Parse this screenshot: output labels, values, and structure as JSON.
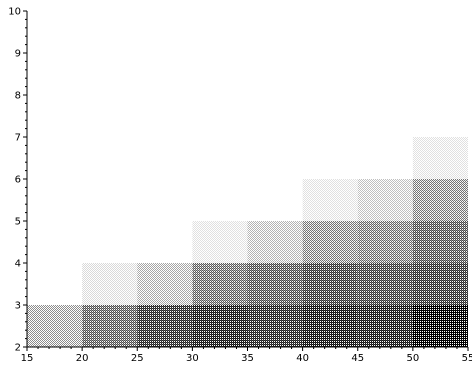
{
  "chart_data": {
    "type": "heatmap",
    "title": "",
    "xlabel": "",
    "ylabel": "",
    "xlim": [
      15,
      55
    ],
    "ylim": [
      2,
      10
    ],
    "x_ticks": [
      "15",
      "20",
      "25",
      "30",
      "35",
      "40",
      "45",
      "50",
      "55"
    ],
    "y_ticks": [
      "2",
      "3",
      "4",
      "5",
      "6",
      "7",
      "8",
      "9",
      "10"
    ],
    "x_bins": [
      15,
      20,
      25,
      30,
      35,
      40,
      45,
      50,
      55
    ],
    "y_bins": [
      2,
      3,
      4,
      5,
      6,
      7
    ],
    "grid": false,
    "legend": "none",
    "fill_pattern": "stippled dots",
    "cells": [
      {
        "x": [
          15,
          20
        ],
        "y": [
          2,
          3
        ],
        "intensity": 0.45
      },
      {
        "x": [
          20,
          25
        ],
        "y": [
          2,
          3
        ],
        "intensity": 0.7
      },
      {
        "x": [
          25,
          30
        ],
        "y": [
          2,
          3
        ],
        "intensity": 0.85
      },
      {
        "x": [
          30,
          35
        ],
        "y": [
          2,
          3
        ],
        "intensity": 0.9
      },
      {
        "x": [
          35,
          40
        ],
        "y": [
          2,
          3
        ],
        "intensity": 0.87
      },
      {
        "x": [
          40,
          45
        ],
        "y": [
          2,
          3
        ],
        "intensity": 0.92
      },
      {
        "x": [
          45,
          50
        ],
        "y": [
          2,
          3
        ],
        "intensity": 0.9
      },
      {
        "x": [
          50,
          55
        ],
        "y": [
          2,
          3
        ],
        "intensity": 1.0
      },
      {
        "x": [
          20,
          25
        ],
        "y": [
          3,
          4
        ],
        "intensity": 0.15
      },
      {
        "x": [
          25,
          30
        ],
        "y": [
          3,
          4
        ],
        "intensity": 0.35
      },
      {
        "x": [
          30,
          35
        ],
        "y": [
          3,
          4
        ],
        "intensity": 0.65
      },
      {
        "x": [
          35,
          40
        ],
        "y": [
          3,
          4
        ],
        "intensity": 0.72
      },
      {
        "x": [
          40,
          45
        ],
        "y": [
          3,
          4
        ],
        "intensity": 0.8
      },
      {
        "x": [
          45,
          50
        ],
        "y": [
          3,
          4
        ],
        "intensity": 0.78
      },
      {
        "x": [
          50,
          55
        ],
        "y": [
          3,
          4
        ],
        "intensity": 0.82
      },
      {
        "x": [
          30,
          35
        ],
        "y": [
          4,
          5
        ],
        "intensity": 0.12
      },
      {
        "x": [
          35,
          40
        ],
        "y": [
          4,
          5
        ],
        "intensity": 0.3
      },
      {
        "x": [
          40,
          45
        ],
        "y": [
          4,
          5
        ],
        "intensity": 0.55
      },
      {
        "x": [
          45,
          50
        ],
        "y": [
          4,
          5
        ],
        "intensity": 0.6
      },
      {
        "x": [
          50,
          55
        ],
        "y": [
          4,
          5
        ],
        "intensity": 0.72
      },
      {
        "x": [
          40,
          45
        ],
        "y": [
          5,
          6
        ],
        "intensity": 0.12
      },
      {
        "x": [
          45,
          50
        ],
        "y": [
          5,
          6
        ],
        "intensity": 0.25
      },
      {
        "x": [
          50,
          55
        ],
        "y": [
          5,
          6
        ],
        "intensity": 0.55
      },
      {
        "x": [
          50,
          55
        ],
        "y": [
          6,
          7
        ],
        "intensity": 0.12
      }
    ]
  }
}
